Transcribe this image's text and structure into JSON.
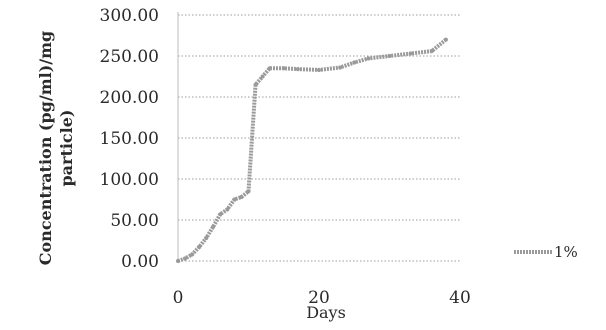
{
  "chart_data": {
    "type": "line",
    "xlabel": "Days",
    "ylabel_line1": "Concentration (pg/ml)/mg",
    "ylabel_line2": "particle)",
    "xlim": [
      0,
      40
    ],
    "ylim": [
      0,
      300
    ],
    "x_ticks": [
      "0",
      "20",
      "40"
    ],
    "y_ticks": [
      "0.00",
      "50.00",
      "100.00",
      "150.00",
      "200.00",
      "250.00",
      "300.00"
    ],
    "grid": "horizontal-dotted",
    "legend_position": "right",
    "series": [
      {
        "name": "1%",
        "color": "#9a9a9a",
        "x": [
          0,
          1,
          2,
          3,
          4,
          5,
          6,
          7,
          8,
          9,
          10,
          11,
          12,
          13,
          15,
          17,
          20,
          23,
          25,
          27,
          30,
          33,
          36,
          38
        ],
        "y": [
          0,
          3,
          8,
          17,
          28,
          42,
          57,
          63,
          75,
          78,
          85,
          215,
          225,
          235,
          235,
          234,
          233,
          236,
          242,
          247,
          250,
          253,
          256,
          270
        ]
      }
    ]
  }
}
